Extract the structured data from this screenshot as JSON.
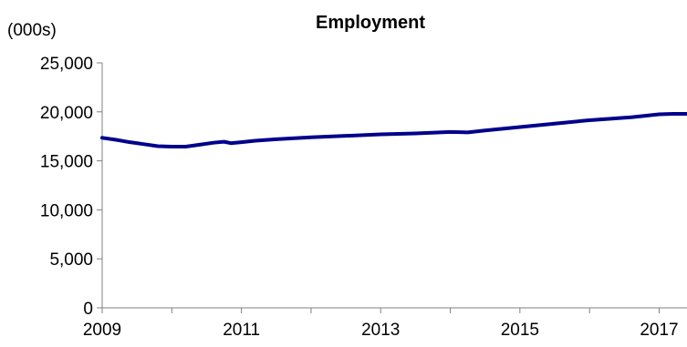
{
  "chart_data": {
    "type": "line",
    "title": "Employment",
    "unit_label": "(000s)",
    "xlabel": "",
    "ylabel": "",
    "ylim": [
      0,
      25000
    ],
    "xlim": [
      2009,
      2017.4
    ],
    "y_ticks": [
      0,
      5000,
      10000,
      15000,
      20000,
      25000
    ],
    "y_tick_labels": [
      "0",
      "5,000",
      "10,000",
      "15,000",
      "20,000",
      "25,000"
    ],
    "x_tick_years": [
      2009,
      2010,
      2011,
      2012,
      2013,
      2014,
      2015,
      2016,
      2017
    ],
    "x_tick_labels": [
      "2009",
      "2011",
      "2013",
      "2015",
      "2017"
    ],
    "x_labeled_years": [
      2009,
      2011,
      2013,
      2015,
      2017
    ],
    "grid": false,
    "legend": "none",
    "series": [
      {
        "color": "#00008b",
        "x": [
          2009.0,
          2009.2,
          2009.4,
          2009.6,
          2009.8,
          2010.0,
          2010.2,
          2010.4,
          2010.6,
          2010.75,
          2010.85,
          2011.0,
          2011.2,
          2011.5,
          2012.0,
          2012.5,
          2013.0,
          2013.5,
          2014.0,
          2014.25,
          2014.5,
          2015.0,
          2015.5,
          2016.0,
          2016.3,
          2016.6,
          2016.8,
          2017.0,
          2017.2,
          2017.4
        ],
        "y": [
          17350,
          17150,
          16900,
          16700,
          16500,
          16450,
          16450,
          16650,
          16850,
          16950,
          16800,
          16900,
          17050,
          17200,
          17400,
          17550,
          17700,
          17800,
          17950,
          17900,
          18100,
          18450,
          18800,
          19150,
          19300,
          19450,
          19600,
          19750,
          19800,
          19800
        ]
      }
    ]
  }
}
